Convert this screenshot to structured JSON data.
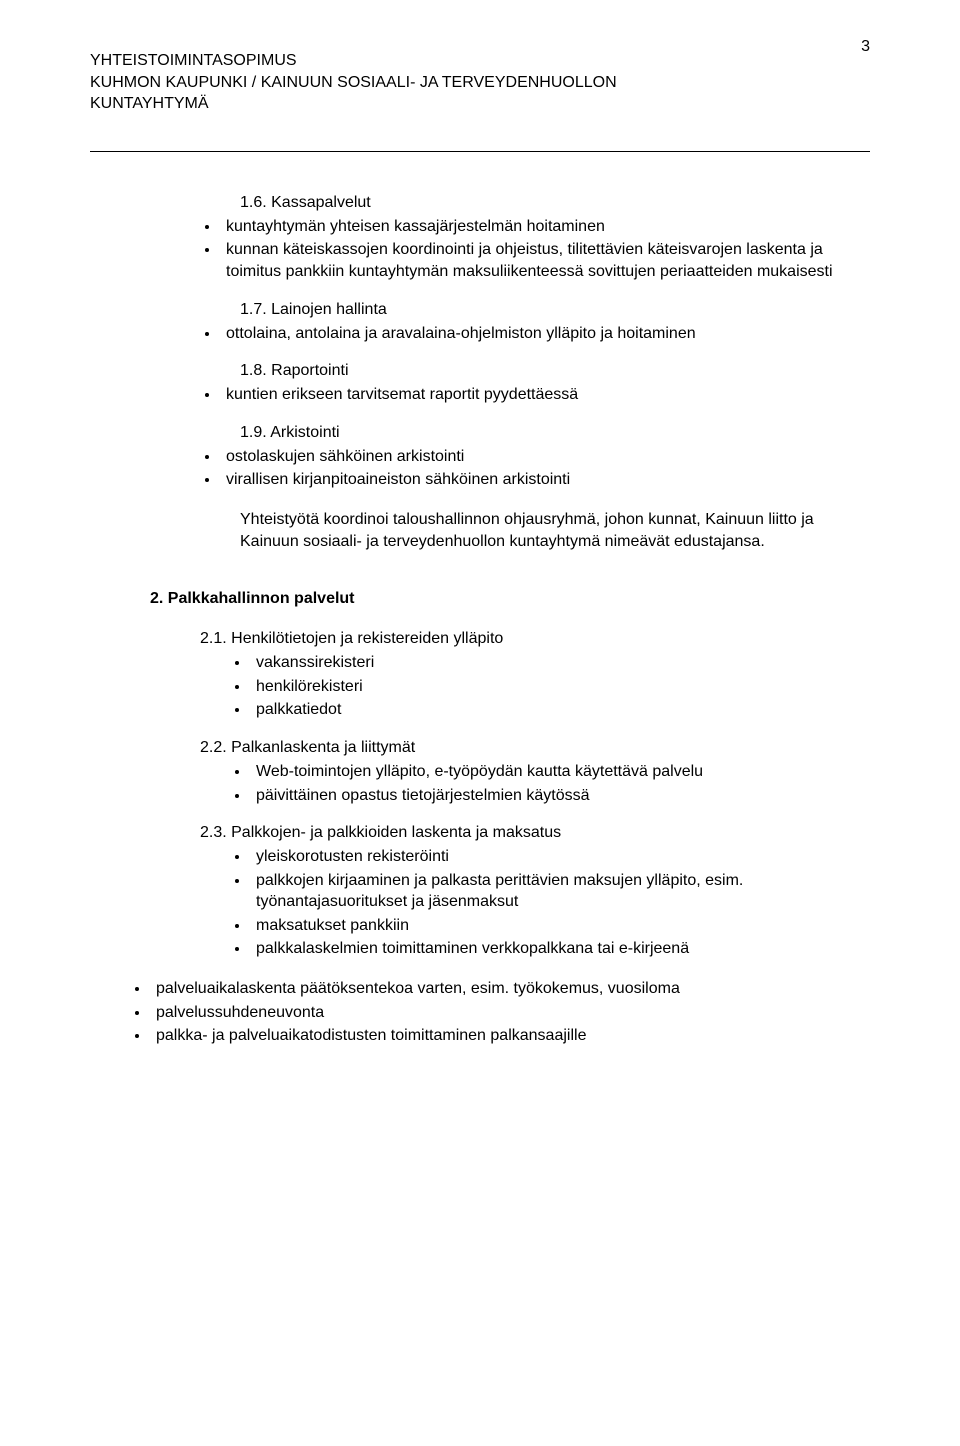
{
  "page_number": "3",
  "header": {
    "line1": "YHTEISTOIMINTASOPIMUS",
    "line2": "KUHMON KAUPUNKI / KAINUUN SOSIAALI- JA TERVEYDENHUOLLON",
    "line3": "KUNTAYHTYMÄ"
  },
  "sec16": {
    "title": "1.6. Kassapalvelut",
    "items": [
      "kuntayhtymän yhteisen kassajärjestelmän hoitaminen",
      "kunnan käteiskassojen koordinointi ja ohjeistus, tilitettävien käteisvarojen laskenta ja toimitus pankkiin kuntayhtymän maksuliikenteessä sovittujen periaatteiden mukaisesti"
    ]
  },
  "sec17": {
    "title": "1.7. Lainojen hallinta",
    "items": [
      "ottolaina, antolaina ja aravalaina-ohjelmiston ylläpito ja hoitaminen"
    ]
  },
  "sec18": {
    "title": "1.8. Raportointi",
    "items": [
      "kuntien erikseen tarvitsemat raportit pyydettäessä"
    ]
  },
  "sec19": {
    "title": "1.9. Arkistointi",
    "items": [
      "ostolaskujen sähköinen arkistointi",
      "virallisen kirjanpitoaineiston sähköinen arkistointi"
    ],
    "paragraph": "Yhteistyötä koordinoi taloushallinnon ohjausryhmä, johon kunnat, Kainuun liitto ja Kainuun sosiaali- ja terveydenhuollon kuntayhtymä nimeävät edustajansa."
  },
  "sec2": {
    "heading": "2.  Palkkahallinnon palvelut",
    "s21": {
      "title": "2.1. Henkilötietojen ja rekistereiden ylläpito",
      "items": [
        "vakanssirekisteri",
        "henkilörekisteri",
        "palkkatiedot"
      ]
    },
    "s22": {
      "title": "2.2. Palkanlaskenta ja liittymät",
      "items": [
        "Web-toimintojen ylläpito, e-työpöydän kautta käytettävä palvelu",
        "päivittäinen opastus tietojärjestelmien käytössä"
      ]
    },
    "s23": {
      "title": "2.3. Palkkojen- ja palkkioiden laskenta ja maksatus",
      "items": [
        "yleiskorotusten rekisteröinti",
        "palkkojen kirjaaminen ja palkasta perittävien maksujen ylläpito, esim. työnantajasuoritukset ja jäsenmaksut",
        "maksatukset pankkiin",
        "palkkalaskelmien toimittaminen verkkopalkkana tai e-kirjeenä"
      ]
    },
    "outer": [
      "palveluaikalaskenta päätöksentekoa varten, esim. työkokemus, vuosiloma",
      "palvelussuhdeneuvonta",
      "palkka- ja palveluaikatodistusten toimittaminen palkansaajille"
    ]
  }
}
